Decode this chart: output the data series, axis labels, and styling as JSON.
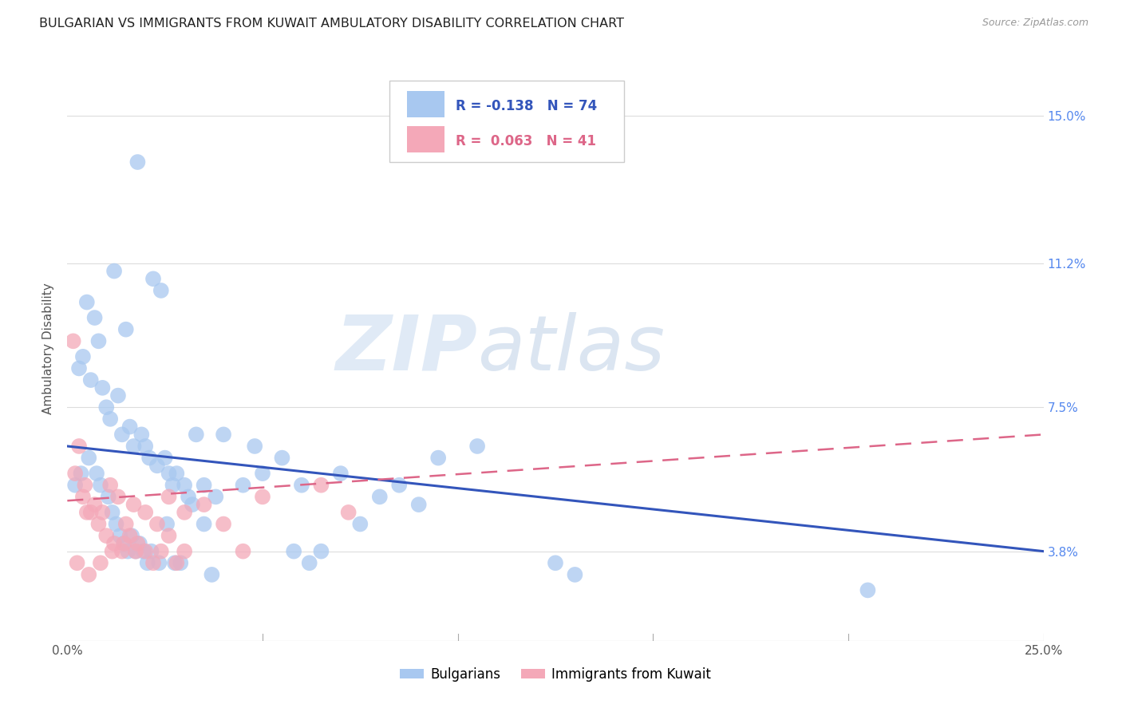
{
  "title": "BULGARIAN VS IMMIGRANTS FROM KUWAIT AMBULATORY DISABILITY CORRELATION CHART",
  "source": "Source: ZipAtlas.com",
  "ylabel": "Ambulatory Disability",
  "ytick_labels": [
    "3.8%",
    "7.5%",
    "11.2%",
    "15.0%"
  ],
  "ytick_vals": [
    3.8,
    7.5,
    11.2,
    15.0
  ],
  "xlim": [
    0.0,
    25.0
  ],
  "ylim": [
    1.5,
    16.5
  ],
  "legend_blue_r": "R = -0.138",
  "legend_blue_n": "N = 74",
  "legend_pink_r": "R = 0.063",
  "legend_pink_n": "N = 41",
  "blue_color": "#A8C8F0",
  "pink_color": "#F4A8B8",
  "trend_blue": "#3355BB",
  "trend_pink": "#DD6688",
  "watermark_zip": "ZIP",
  "watermark_atlas": "atlas",
  "blue_trend_x": [
    0.0,
    25.0
  ],
  "blue_trend_y": [
    6.5,
    3.8
  ],
  "pink_trend_x": [
    0.0,
    25.0
  ],
  "pink_trend_y": [
    5.1,
    6.8
  ],
  "bulgarians_x": [
    1.8,
    1.2,
    2.2,
    2.4,
    1.5,
    0.5,
    0.7,
    0.8,
    0.3,
    0.4,
    0.6,
    0.9,
    1.0,
    1.1,
    1.3,
    1.4,
    1.6,
    1.7,
    1.9,
    2.0,
    2.1,
    2.3,
    2.5,
    2.6,
    2.7,
    2.8,
    3.0,
    3.1,
    3.3,
    3.5,
    3.8,
    4.0,
    4.5,
    5.0,
    5.5,
    6.0,
    7.0,
    8.5,
    9.5,
    0.2,
    0.35,
    0.55,
    0.75,
    0.85,
    1.05,
    1.15,
    1.25,
    1.35,
    1.45,
    1.55,
    1.65,
    1.75,
    1.85,
    1.95,
    2.05,
    2.15,
    2.35,
    2.55,
    2.75,
    3.2,
    3.7,
    6.5,
    7.5,
    8.0,
    9.0,
    10.5,
    12.5,
    13.0,
    20.5,
    4.8,
    3.5,
    6.2,
    5.8,
    2.9
  ],
  "bulgarians_y": [
    13.8,
    11.0,
    10.8,
    10.5,
    9.5,
    10.2,
    9.8,
    9.2,
    8.5,
    8.8,
    8.2,
    8.0,
    7.5,
    7.2,
    7.8,
    6.8,
    7.0,
    6.5,
    6.8,
    6.5,
    6.2,
    6.0,
    6.2,
    5.8,
    5.5,
    5.8,
    5.5,
    5.2,
    6.8,
    5.5,
    5.2,
    6.8,
    5.5,
    5.8,
    6.2,
    5.5,
    5.8,
    5.5,
    6.2,
    5.5,
    5.8,
    6.2,
    5.8,
    5.5,
    5.2,
    4.8,
    4.5,
    4.2,
    4.0,
    3.8,
    4.2,
    3.8,
    4.0,
    3.8,
    3.5,
    3.8,
    3.5,
    4.5,
    3.5,
    5.0,
    3.2,
    3.8,
    4.5,
    5.2,
    5.0,
    6.5,
    3.5,
    3.2,
    2.8,
    6.5,
    4.5,
    3.5,
    3.8,
    3.5
  ],
  "immigrants_x": [
    0.15,
    0.3,
    0.45,
    0.6,
    0.8,
    1.0,
    1.2,
    1.4,
    1.6,
    1.8,
    2.0,
    2.2,
    2.4,
    2.6,
    2.8,
    3.0,
    0.2,
    0.4,
    0.5,
    0.7,
    0.9,
    1.1,
    1.3,
    1.5,
    1.7,
    2.0,
    2.3,
    2.6,
    3.0,
    3.5,
    4.0,
    4.5,
    5.0,
    6.5,
    0.25,
    0.55,
    0.85,
    1.15,
    1.45,
    1.75,
    7.2
  ],
  "immigrants_y": [
    9.2,
    6.5,
    5.5,
    4.8,
    4.5,
    4.2,
    4.0,
    3.8,
    4.2,
    4.0,
    3.8,
    3.5,
    3.8,
    4.2,
    3.5,
    3.8,
    5.8,
    5.2,
    4.8,
    5.0,
    4.8,
    5.5,
    5.2,
    4.5,
    5.0,
    4.8,
    4.5,
    5.2,
    4.8,
    5.0,
    4.5,
    3.8,
    5.2,
    5.5,
    3.5,
    3.2,
    3.5,
    3.8,
    4.0,
    3.8,
    4.8
  ]
}
